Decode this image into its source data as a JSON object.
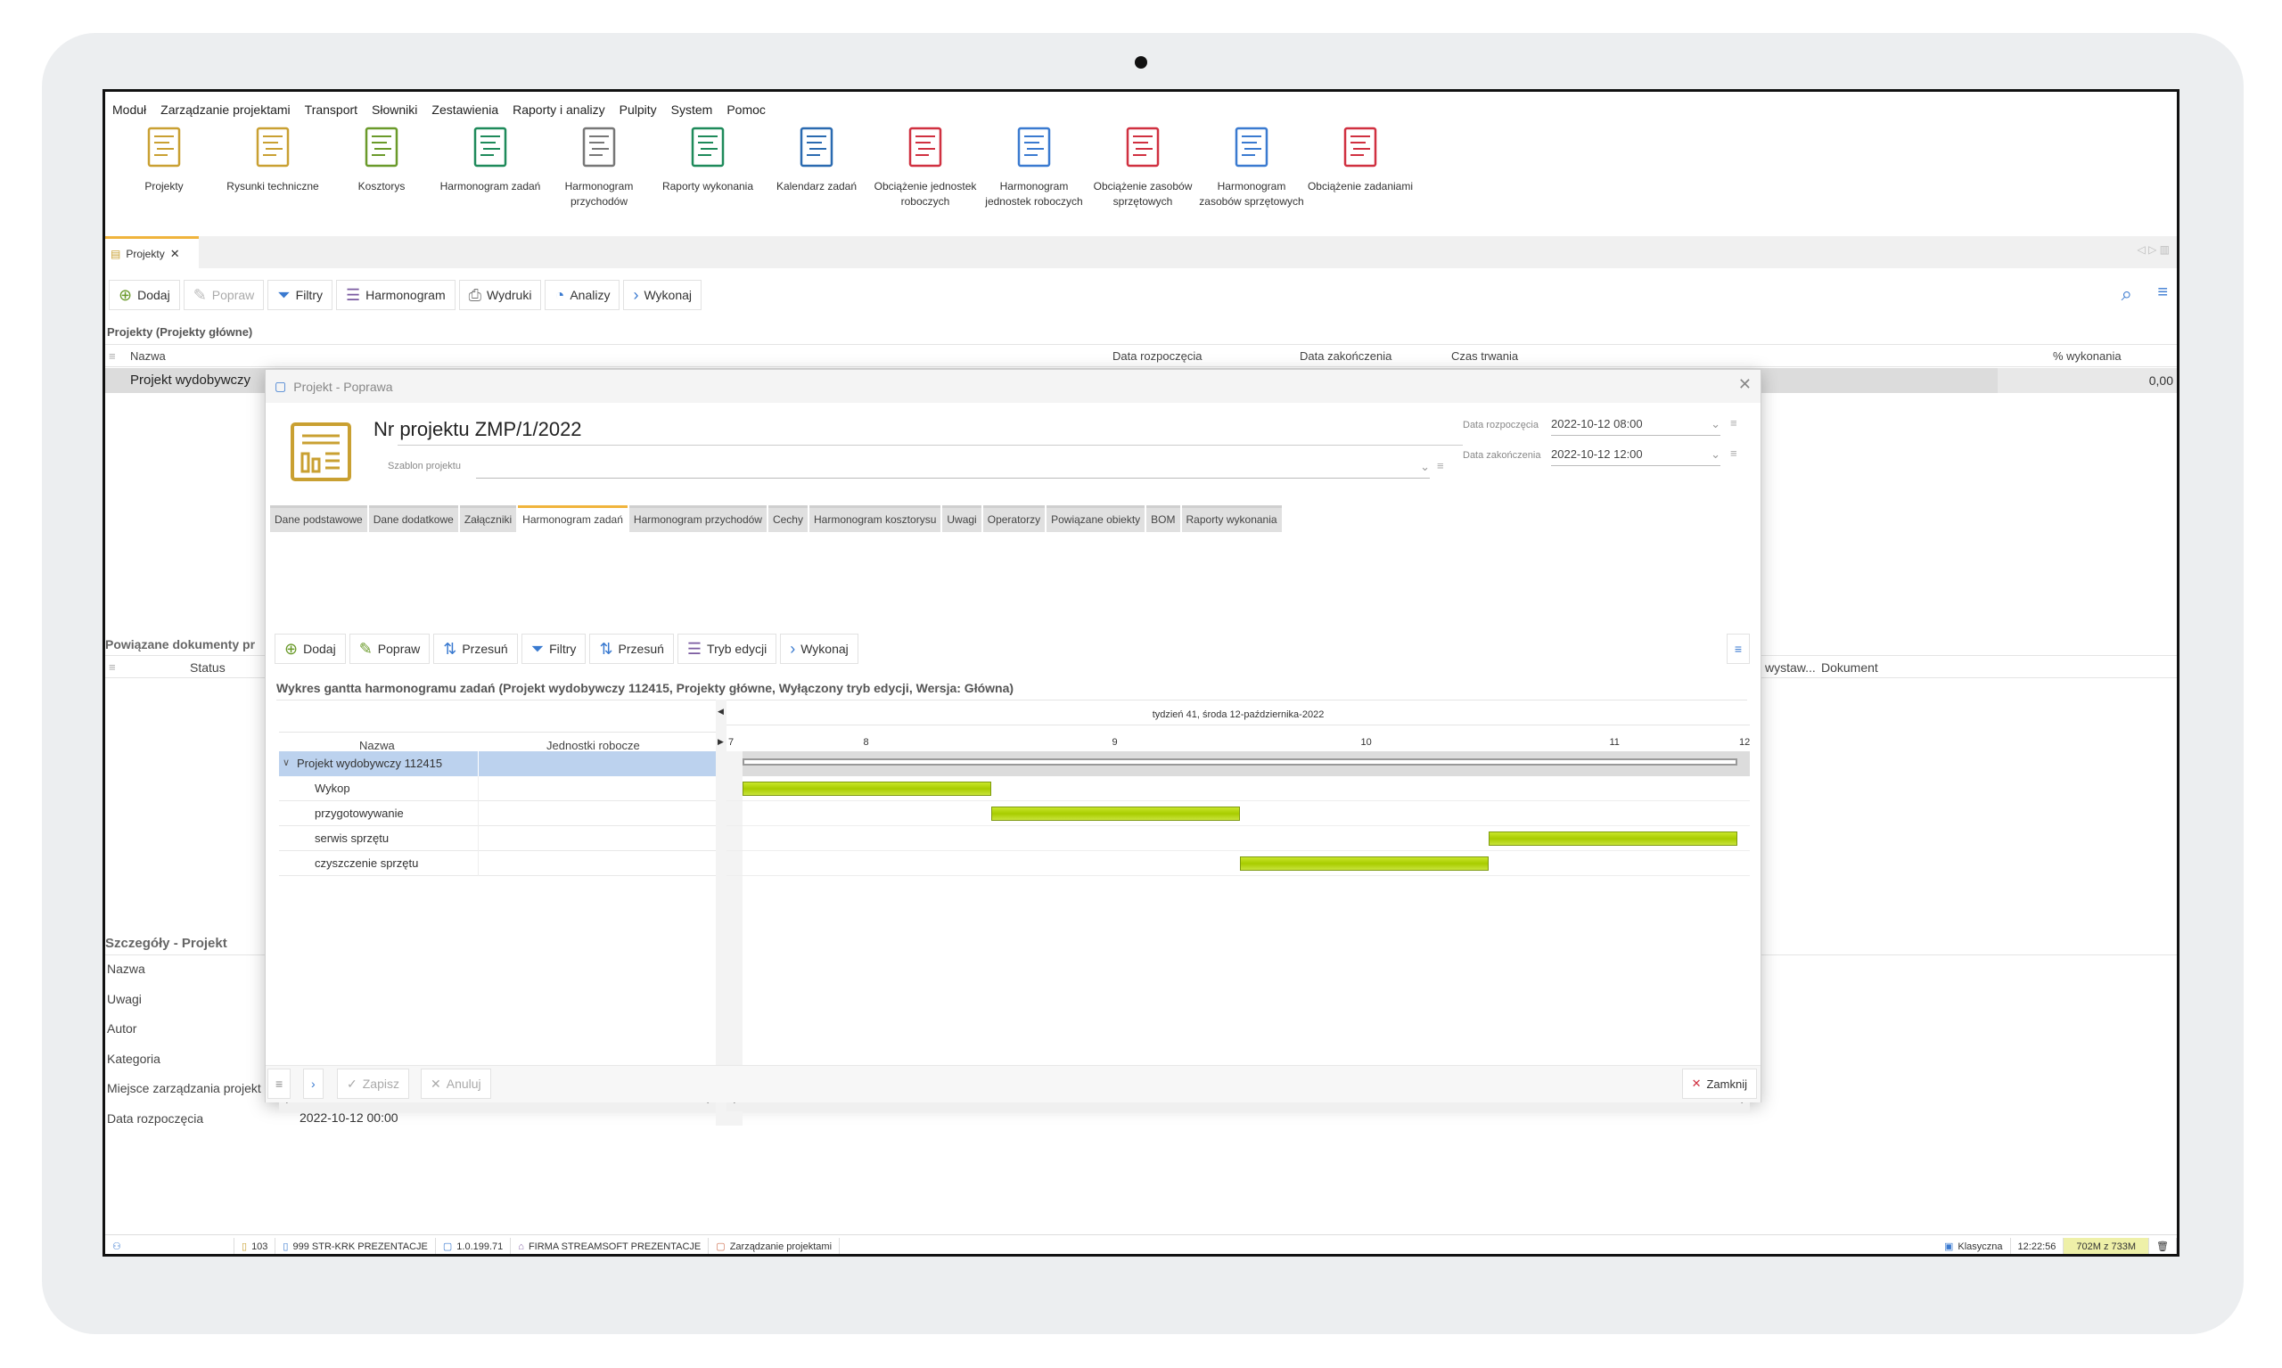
{
  "menu": [
    "Moduł",
    "Zarządzanie projektami",
    "Transport",
    "Słowniki",
    "Zestawienia",
    "Raporty i analizy",
    "Pulpity",
    "System",
    "Pomoc"
  ],
  "ribbon": [
    {
      "label": "Projekty",
      "icon": "projects-icon",
      "color": "#c9a032"
    },
    {
      "label": "Rysunki techniczne",
      "icon": "technical-drawing-icon",
      "color": "#c9a032"
    },
    {
      "label": "Kosztorys",
      "icon": "cost-estimate-icon",
      "color": "#6a9a2a"
    },
    {
      "label": "Harmonogram zadań",
      "icon": "task-schedule-icon",
      "color": "#1e8a5a"
    },
    {
      "label": "Harmonogram przychodów",
      "icon": "revenue-schedule-icon",
      "color": "#777777"
    },
    {
      "label": "Raporty wykonania",
      "icon": "execution-report-icon",
      "color": "#1e8a5a"
    },
    {
      "label": "Kalendarz zadań",
      "icon": "task-calendar-icon",
      "color": "#2a6ab0"
    },
    {
      "label": "Obciążenie jednostek roboczych",
      "icon": "worker-load-icon",
      "color": "#d03040"
    },
    {
      "label": "Harmonogram jednostek roboczych",
      "icon": "worker-schedule-icon",
      "color": "#3a7ad0"
    },
    {
      "label": "Obciążenie zasobów sprzętowych",
      "icon": "equipment-load-icon",
      "color": "#d03040"
    },
    {
      "label": "Harmonogram zasobów sprzętowych",
      "icon": "equipment-schedule-icon",
      "color": "#3a7ad0"
    },
    {
      "label": "Obciążenie zadaniami",
      "icon": "task-load-icon",
      "color": "#d03040"
    }
  ],
  "main_tab": {
    "label": "Projekty"
  },
  "toolbar": [
    "Dodaj",
    "Popraw",
    "Filtry",
    "Harmonogram",
    "Wydruki",
    "Analizy",
    "Wykonaj"
  ],
  "projects": {
    "title": "Projekty (Projekty główne)",
    "columns": [
      "Nazwa",
      "Data rozpoczęcia",
      "Data zakończenia",
      "Czas trwania",
      "% wykonania"
    ],
    "row": {
      "name": "Projekt wydobywczy",
      "percent": "0,00"
    }
  },
  "related": {
    "title": "Powiązane dokumenty pr",
    "status": "Status",
    "col_issued": "wystaw...",
    "col_doc": "Dokument"
  },
  "details": {
    "title": "Szczegóły - Projekt",
    "fields": [
      "Nazwa",
      "Uwagi",
      "Autor",
      "Kategoria",
      "Miejsce zarządzania projekt",
      "Data rozpoczęcia"
    ],
    "start_value": "2022-10-12 00:00"
  },
  "dialog": {
    "title": "Projekt - Poprawa",
    "project_no": "Nr projektu ZMP/1/2022",
    "template_label": "Szablon projektu",
    "start_label": "Data rozpoczęcia",
    "start_value": "2022-10-12 08:00",
    "end_label": "Data zakończenia",
    "end_value": "2022-10-12 12:00",
    "tabs": [
      "Dane podstawowe",
      "Dane dodatkowe",
      "Załączniki",
      "Harmonogram zadań",
      "Harmonogram przychodów",
      "Cechy",
      "Harmonogram kosztorysu",
      "Uwagi",
      "Operatorzy",
      "Powiązane obiekty",
      "BOM",
      "Raporty wykonania"
    ],
    "active_tab": "Harmonogram zadań",
    "toolbar": [
      "Dodaj",
      "Popraw",
      "Przesuń",
      "Filtry",
      "Przesuń",
      "Tryb edycji",
      "Wykonaj"
    ],
    "gantt_title": "Wykres gantta harmonogramu zadań (Projekt wydobywczy 112415, Projekty główne, Wyłączony tryb edycji, Wersja: Główna)",
    "footer": {
      "save": "Zapisz",
      "cancel": "Anuluj",
      "close": "Zamknij"
    }
  },
  "gantt": {
    "date_header": "tydzień 41, środa 12-października-2022",
    "col_name": "Nazwa",
    "col_units": "Jednostki robocze",
    "hour_labels": [
      "7",
      "8",
      "9",
      "10",
      "11",
      "12"
    ],
    "range_hours": [
      8,
      12
    ],
    "parent": {
      "name": "Projekt wydobywczy 112415",
      "start": 8,
      "end": 12
    },
    "tasks": [
      {
        "name": "Wykop",
        "start": 8,
        "end": 9
      },
      {
        "name": "przygotowywanie",
        "start": 9,
        "end": 10
      },
      {
        "name": "serwis sprzętu",
        "start": 11,
        "end": 12
      },
      {
        "name": "czyszczenie sprzętu",
        "start": 10,
        "end": 11
      }
    ],
    "bar_color": "#b5d60e"
  },
  "statusbar": {
    "count": "103",
    "location": "999 STR-KRK PREZENTACJE",
    "ip": "1.0.199.71",
    "company": "FIRMA STREAMSOFT PREZENTACJE",
    "module": "Zarządzanie projektami",
    "theme": "Klasyczna",
    "time": "12:22:56",
    "memory": "702M z 733M"
  }
}
